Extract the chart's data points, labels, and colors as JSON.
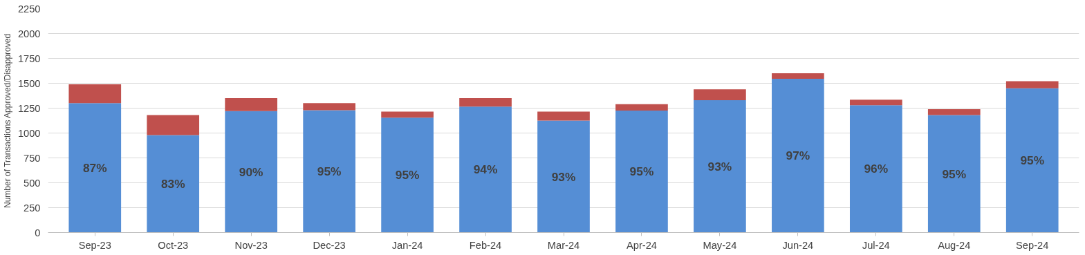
{
  "chart_data": {
    "type": "bar",
    "stacked": true,
    "ylabel": "Number of Transactions Approved/Disapproved",
    "categories": [
      "Sep-23",
      "Oct-23",
      "Nov-23",
      "Dec-23",
      "Jan-24",
      "Feb-24",
      "Mar-24",
      "Apr-24",
      "May-24",
      "Jun-24",
      "Jul-24",
      "Aug-24",
      "Sep-24"
    ],
    "series": [
      {
        "color": "#558ed5",
        "values": [
          1300,
          980,
          1220,
          1230,
          1155,
          1265,
          1125,
          1225,
          1330,
          1545,
          1280,
          1180,
          1450
        ]
      },
      {
        "color": "#c0504d",
        "values": [
          190,
          200,
          130,
          70,
          60,
          85,
          90,
          65,
          110,
          55,
          55,
          60,
          70
        ]
      }
    ],
    "annotations": [
      "87%",
      "83%",
      "90%",
      "95%",
      "95%",
      "94%",
      "93%",
      "95%",
      "93%",
      "97%",
      "96%",
      "95%",
      "95%"
    ],
    "ylim": [
      0,
      2250
    ],
    "yticks": [
      0,
      250,
      500,
      750,
      1000,
      1250,
      1500,
      1750,
      2000,
      2250
    ],
    "grid": "y"
  }
}
